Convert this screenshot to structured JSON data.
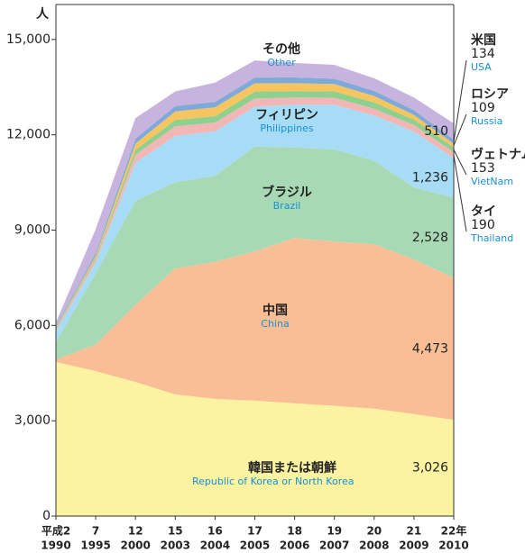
{
  "chart_data": {
    "type": "stacked-area",
    "y_label": "人",
    "categories": [
      "平成2",
      "7",
      "12",
      "15",
      "16",
      "17",
      "18",
      "19",
      "20",
      "21",
      "22年"
    ],
    "years": [
      "1990",
      "1995",
      "2000",
      "2003",
      "2004",
      "2005",
      "2006",
      "2007",
      "2008",
      "2009",
      "2010"
    ],
    "ylim": [
      0,
      16100
    ],
    "yticks": [
      0,
      {
        "value": 3000,
        "label": "3,000"
      },
      {
        "value": 6000,
        "label": "6,000"
      },
      {
        "value": 9000,
        "label": "9,000"
      },
      {
        "value": 12000,
        "label": "12,000"
      },
      {
        "value": 15000,
        "label": "15,000"
      }
    ],
    "series": [
      {
        "name": "韓国または朝鮮",
        "name_en": "Republic of Korea or North Korea",
        "color": "#fbf2a2",
        "values": [
          4850,
          4560,
          4220,
          3830,
          3690,
          3630,
          3550,
          3470,
          3380,
          3210,
          3026
        ],
        "value_labels": [
          null,
          null,
          null,
          null,
          null,
          null,
          null,
          null,
          null,
          null,
          "3,026"
        ]
      },
      {
        "name": "中国",
        "name_en": "China",
        "color": "#f9be96",
        "values": [
          80,
          840,
          2430,
          3970,
          4310,
          4700,
          5200,
          5170,
          5175,
          4870,
          4473
        ],
        "value_labels": [
          null,
          null,
          null,
          null,
          null,
          null,
          null,
          null,
          null,
          null,
          "4,473"
        ]
      },
      {
        "name": "ブラジル",
        "name_en": "Brazil",
        "color": "#a8d9b5",
        "values": [
          550,
          2235,
          3270,
          2710,
          2710,
          3300,
          2850,
          2905,
          2625,
          2265,
          2528
        ],
        "value_labels": [
          null,
          null,
          null,
          null,
          null,
          null,
          null,
          null,
          null,
          null,
          "2,528"
        ]
      },
      {
        "name": "フィリピン",
        "name_en": "Philippines",
        "color": "#a6dcf5",
        "values": [
          335,
          340,
          1205,
          1455,
          1395,
          1260,
          1345,
          1400,
          1430,
          1760,
          1236
        ],
        "value_labels": [
          null,
          null,
          null,
          null,
          null,
          null,
          null,
          null,
          null,
          null,
          "1,236"
        ]
      },
      {
        "name": "タイ",
        "name_en": "Thailand",
        "color": "#f3b6b6",
        "values": [
          60,
          100,
          250,
          300,
          280,
          250,
          230,
          220,
          210,
          200,
          190
        ]
      },
      {
        "name": "ヴェトナム",
        "name_en": "VietNam",
        "color": "#8fd08e",
        "values": [
          40,
          60,
          150,
          200,
          200,
          220,
          200,
          200,
          200,
          170,
          153
        ]
      },
      {
        "name": "ロシア",
        "name_en": "Russia",
        "color": "#f7c560",
        "values": [
          20,
          60,
          200,
          270,
          280,
          260,
          250,
          230,
          200,
          150,
          109
        ]
      },
      {
        "name": "米国",
        "name_en": "USA",
        "color": "#7fa9d8",
        "values": [
          40,
          80,
          150,
          170,
          170,
          180,
          180,
          170,
          160,
          150,
          134
        ]
      },
      {
        "name": "その他",
        "name_en": "Other",
        "color": "#c6b4de",
        "values": [
          120,
          755,
          650,
          460,
          605,
          540,
          455,
          435,
          400,
          400,
          510
        ],
        "value_labels": [
          null,
          null,
          null,
          null,
          null,
          null,
          null,
          null,
          null,
          null,
          "510"
        ]
      }
    ]
  }
}
